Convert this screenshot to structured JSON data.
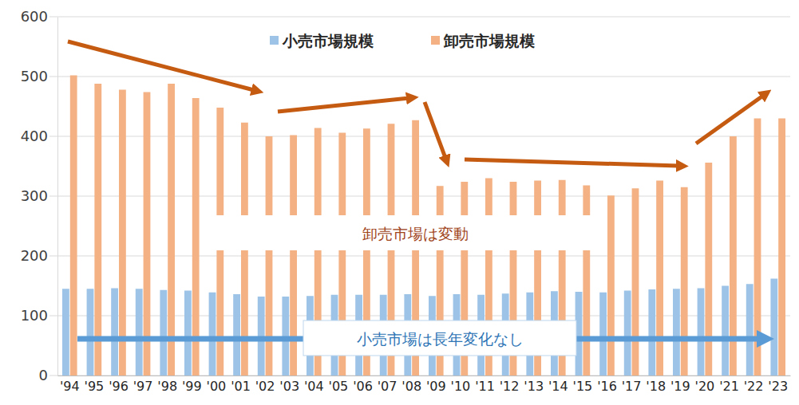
{
  "chart_data": {
    "type": "bar",
    "categories": [
      "'94",
      "'95",
      "'96",
      "'97",
      "'98",
      "'99",
      "'00",
      "'01",
      "'02",
      "'03",
      "'04",
      "'05",
      "'06",
      "'07",
      "'08",
      "'09",
      "'10",
      "'11",
      "'12",
      "'13",
      "'14",
      "'15",
      "'16",
      "'17",
      "'18",
      "'19",
      "'20",
      "'21",
      "'22",
      "'23"
    ],
    "series": [
      {
        "name": "小売市場規模",
        "color": "#9dc3e6",
        "values": [
          145,
          145,
          146,
          145,
          143,
          142,
          139,
          136,
          132,
          132,
          133,
          135,
          135,
          135,
          136,
          133,
          136,
          135,
          137,
          139,
          141,
          140,
          139,
          142,
          144,
          145,
          146,
          150,
          153,
          162
        ]
      },
      {
        "name": "卸売市場規模",
        "color": "#f4b183",
        "values": [
          502,
          488,
          478,
          474,
          488,
          464,
          448,
          423,
          400,
          402,
          414,
          406,
          413,
          421,
          427,
          317,
          324,
          330,
          324,
          326,
          327,
          318,
          301,
          313,
          326,
          315,
          356,
          400,
          430,
          430
        ]
      }
    ],
    "annotations": [
      "卸売市場は変動",
      "小売市場は長年変化なし"
    ],
    "ylim": [
      0,
      600
    ],
    "yticks": [
      0,
      100,
      200,
      300,
      400,
      500,
      600
    ],
    "grid": true,
    "legend": "top"
  }
}
